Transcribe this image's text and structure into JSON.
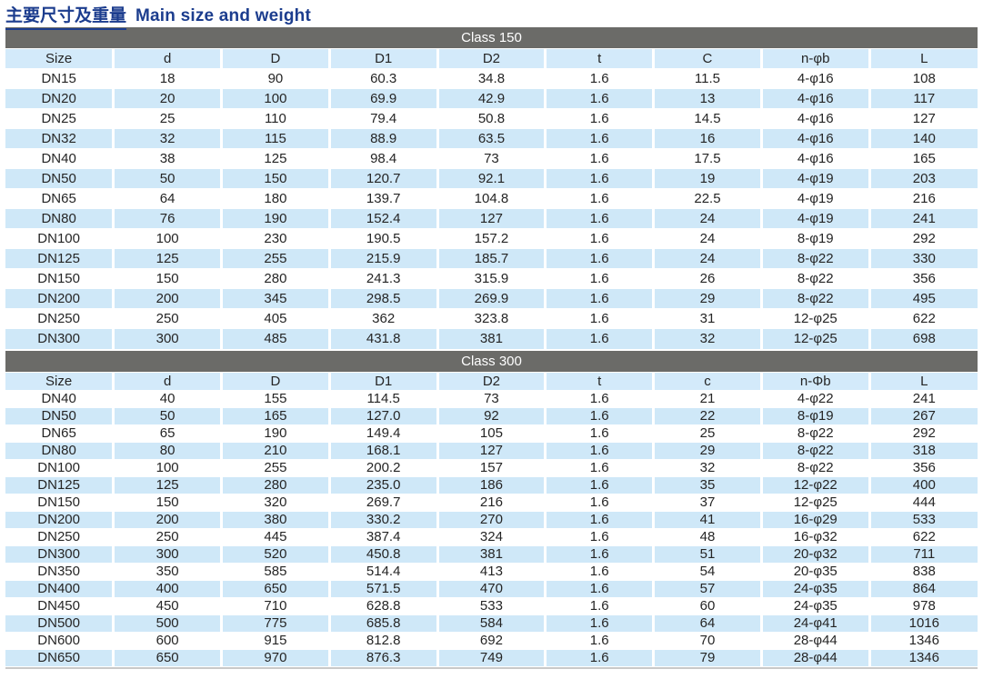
{
  "page_title": {
    "zh": "主要尺寸及重量",
    "en": "Main size and weight"
  },
  "colors": {
    "title_blue": "#1c3d8e",
    "band_gray": "#6b6b68",
    "row_blue": "#cfe8f8",
    "header_blue": "#d3eafa",
    "text": "#252525"
  },
  "sections": [
    {
      "class_label": "Class 150",
      "columns": [
        "Size",
        "d",
        "D",
        "D1",
        "D2",
        "t",
        "C",
        "n-φb",
        "L"
      ],
      "rows": [
        [
          "DN15",
          "18",
          "90",
          "60.3",
          "34.8",
          "1.6",
          "11.5",
          "4-φ16",
          "108"
        ],
        [
          "DN20",
          "20",
          "100",
          "69.9",
          "42.9",
          "1.6",
          "13",
          "4-φ16",
          "117"
        ],
        [
          "DN25",
          "25",
          "110",
          "79.4",
          "50.8",
          "1.6",
          "14.5",
          "4-φ16",
          "127"
        ],
        [
          "DN32",
          "32",
          "115",
          "88.9",
          "63.5",
          "1.6",
          "16",
          "4-φ16",
          "140"
        ],
        [
          "DN40",
          "38",
          "125",
          "98.4",
          "73",
          "1.6",
          "17.5",
          "4-φ16",
          "165"
        ],
        [
          "DN50",
          "50",
          "150",
          "120.7",
          "92.1",
          "1.6",
          "19",
          "4-φ19",
          "203"
        ],
        [
          "DN65",
          "64",
          "180",
          "139.7",
          "104.8",
          "1.6",
          "22.5",
          "4-φ19",
          "216"
        ],
        [
          "DN80",
          "76",
          "190",
          "152.4",
          "127",
          "1.6",
          "24",
          "4-φ19",
          "241"
        ],
        [
          "DN100",
          "100",
          "230",
          "190.5",
          "157.2",
          "1.6",
          "24",
          "8-φ19",
          "292"
        ],
        [
          "DN125",
          "125",
          "255",
          "215.9",
          "185.7",
          "1.6",
          "24",
          "8-φ22",
          "330"
        ],
        [
          "DN150",
          "150",
          "280",
          "241.3",
          "315.9",
          "1.6",
          "26",
          "8-φ22",
          "356"
        ],
        [
          "DN200",
          "200",
          "345",
          "298.5",
          "269.9",
          "1.6",
          "29",
          "8-φ22",
          "495"
        ],
        [
          "DN250",
          "250",
          "405",
          "362",
          "323.8",
          "1.6",
          "31",
          "12-φ25",
          "622"
        ],
        [
          "DN300",
          "300",
          "485",
          "431.8",
          "381",
          "1.6",
          "32",
          "12-φ25",
          "698"
        ]
      ]
    },
    {
      "class_label": "Class 300",
      "columns": [
        "Size",
        "d",
        "D",
        "D1",
        "D2",
        "t",
        "c",
        "n-Φb",
        "L"
      ],
      "rows": [
        [
          "DN40",
          "40",
          "155",
          "114.5",
          "73",
          "1.6",
          "21",
          "4-φ22",
          "241"
        ],
        [
          "DN50",
          "50",
          "165",
          "127.0",
          "92",
          "1.6",
          "22",
          "8-φ19",
          "267"
        ],
        [
          "DN65",
          "65",
          "190",
          "149.4",
          "105",
          "1.6",
          "25",
          "8-φ22",
          "292"
        ],
        [
          "DN80",
          "80",
          "210",
          "168.1",
          "127",
          "1.6",
          "29",
          "8-φ22",
          "318"
        ],
        [
          "DN100",
          "100",
          "255",
          "200.2",
          "157",
          "1.6",
          "32",
          "8-φ22",
          "356"
        ],
        [
          "DN125",
          "125",
          "280",
          "235.0",
          "186",
          "1.6",
          "35",
          "12-φ22",
          "400"
        ],
        [
          "DN150",
          "150",
          "320",
          "269.7",
          "216",
          "1.6",
          "37",
          "12-φ25",
          "444"
        ],
        [
          "DN200",
          "200",
          "380",
          "330.2",
          "270",
          "1.6",
          "41",
          "16-φ29",
          "533"
        ],
        [
          "DN250",
          "250",
          "445",
          "387.4",
          "324",
          "1.6",
          "48",
          "16-φ32",
          "622"
        ],
        [
          "DN300",
          "300",
          "520",
          "450.8",
          "381",
          "1.6",
          "51",
          "20-φ32",
          "711"
        ],
        [
          "DN350",
          "350",
          "585",
          "514.4",
          "413",
          "1.6",
          "54",
          "20-φ35",
          "838"
        ],
        [
          "DN400",
          "400",
          "650",
          "571.5",
          "470",
          "1.6",
          "57",
          "24-φ35",
          "864"
        ],
        [
          "DN450",
          "450",
          "710",
          "628.8",
          "533",
          "1.6",
          "60",
          "24-φ35",
          "978"
        ],
        [
          "DN500",
          "500",
          "775",
          "685.8",
          "584",
          "1.6",
          "64",
          "24-φ41",
          "1016"
        ],
        [
          "DN600",
          "600",
          "915",
          "812.8",
          "692",
          "1.6",
          "70",
          "28-φ44",
          "1346"
        ],
        [
          "DN650",
          "650",
          "970",
          "876.3",
          "749",
          "1.6",
          "79",
          "28-φ44",
          "1346"
        ]
      ]
    }
  ]
}
